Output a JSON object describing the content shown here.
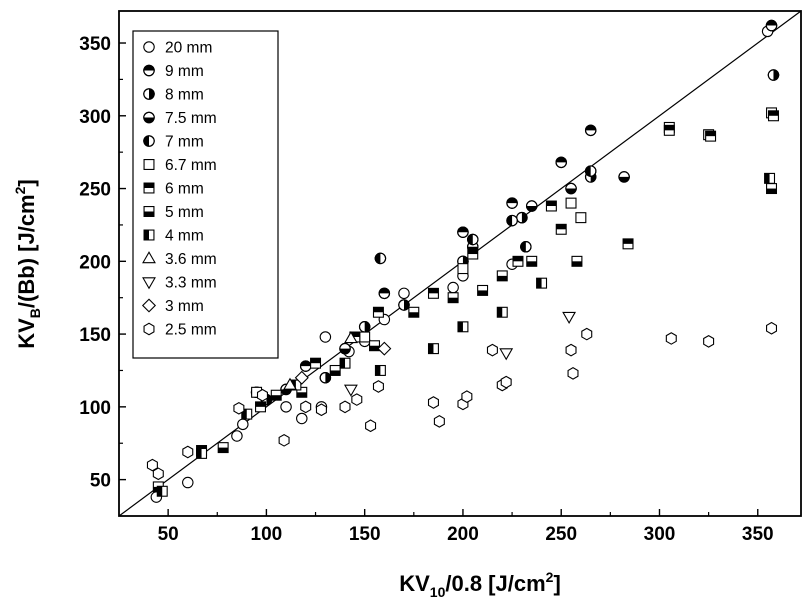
{
  "chart_data": {
    "type": "scatter",
    "title": "",
    "xlabel": "KV10/0.8 [J/cm2]",
    "xlabel_parts": {
      "main": "KV",
      "sub": "10",
      "rest": "/0.8 [J/cm",
      "sup": "2",
      "end": "]"
    },
    "ylabel": "KVB/(Bb) [J/cm2]",
    "ylabel_parts": {
      "main": "KV",
      "sub": "B",
      "rest": "/(Bb) [J/cm",
      "sup": "2",
      "end": "]"
    },
    "xlim": [
      25,
      372
    ],
    "ylim": [
      25,
      372
    ],
    "xticks": [
      50,
      100,
      150,
      200,
      250,
      300,
      350
    ],
    "yticks": [
      50,
      100,
      150,
      200,
      250,
      300,
      350
    ],
    "reference_line": {
      "type": "y=x",
      "from": [
        25,
        25
      ],
      "to": [
        372,
        372
      ]
    },
    "legend_position": "top-left",
    "series": [
      {
        "name": "20 mm",
        "marker": "circle-open",
        "points": [
          [
            44,
            38
          ],
          [
            60,
            48
          ],
          [
            85,
            80
          ],
          [
            88,
            88
          ],
          [
            110,
            100
          ],
          [
            118,
            92
          ],
          [
            128,
            100
          ],
          [
            130,
            148
          ],
          [
            142,
            138
          ],
          [
            150,
            145
          ],
          [
            160,
            160
          ],
          [
            170,
            178
          ],
          [
            195,
            182
          ],
          [
            200,
            190
          ],
          [
            225,
            198
          ],
          [
            355,
            358
          ]
        ]
      },
      {
        "name": "9 mm",
        "marker": "circle-top-filled",
        "points": [
          [
            95,
            110
          ],
          [
            120,
            128
          ],
          [
            160,
            178
          ],
          [
            200,
            220
          ],
          [
            225,
            240
          ],
          [
            250,
            268
          ],
          [
            265,
            290
          ],
          [
            357,
            362
          ]
        ]
      },
      {
        "name": "8 mm",
        "marker": "circle-right-filled",
        "points": [
          [
            100,
            105
          ],
          [
            130,
            120
          ],
          [
            150,
            155
          ],
          [
            170,
            170
          ],
          [
            200,
            200
          ],
          [
            230,
            230
          ],
          [
            265,
            258
          ],
          [
            358,
            328
          ]
        ]
      },
      {
        "name": "7.5 mm",
        "marker": "circle-bottom-filled",
        "points": [
          [
            110,
            112
          ],
          [
            140,
            140
          ],
          [
            205,
            210
          ],
          [
            235,
            238
          ],
          [
            255,
            250
          ],
          [
            282,
            258
          ]
        ]
      },
      {
        "name": "7 mm",
        "marker": "circle-left-filled",
        "points": [
          [
            158,
            202
          ],
          [
            205,
            215
          ],
          [
            225,
            228
          ],
          [
            232,
            210
          ],
          [
            265,
            262
          ]
        ]
      },
      {
        "name": "6.7 mm",
        "marker": "square-open",
        "points": [
          [
            95,
            110
          ],
          [
            150,
            148
          ],
          [
            200,
            195
          ],
          [
            255,
            240
          ],
          [
            260,
            230
          ],
          [
            305,
            292
          ],
          [
            325,
            287
          ],
          [
            357,
            302
          ]
        ]
      },
      {
        "name": "6 mm",
        "marker": "square-top-filled",
        "points": [
          [
            67,
            70
          ],
          [
            97,
            100
          ],
          [
            125,
            130
          ],
          [
            145,
            148
          ],
          [
            157,
            165
          ],
          [
            185,
            178
          ],
          [
            205,
            205
          ],
          [
            228,
            200
          ],
          [
            245,
            238
          ],
          [
            250,
            222
          ],
          [
            284,
            212
          ],
          [
            305,
            290
          ],
          [
            326,
            286
          ],
          [
            358,
            300
          ]
        ]
      },
      {
        "name": "5 mm",
        "marker": "square-bottom-filled",
        "points": [
          [
            45,
            45
          ],
          [
            78,
            72
          ],
          [
            105,
            108
          ],
          [
            118,
            110
          ],
          [
            135,
            125
          ],
          [
            155,
            142
          ],
          [
            175,
            165
          ],
          [
            195,
            175
          ],
          [
            210,
            180
          ],
          [
            220,
            190
          ],
          [
            235,
            200
          ],
          [
            258,
            200
          ],
          [
            357,
            250
          ]
        ]
      },
      {
        "name": "4 mm",
        "marker": "square-left-filled",
        "points": [
          [
            47,
            42
          ],
          [
            67,
            68
          ],
          [
            90,
            95
          ],
          [
            115,
            115
          ],
          [
            140,
            130
          ],
          [
            158,
            125
          ],
          [
            185,
            140
          ],
          [
            200,
            155
          ],
          [
            220,
            165
          ],
          [
            240,
            185
          ],
          [
            356,
            257
          ]
        ]
      },
      {
        "name": "3.6 mm",
        "marker": "triangle-up",
        "points": [
          [
            112,
            115
          ],
          [
            143,
            147
          ]
        ]
      },
      {
        "name": "3.3 mm",
        "marker": "triangle-down",
        "points": [
          [
            143,
            112
          ],
          [
            222,
            137
          ],
          [
            254,
            162
          ]
        ]
      },
      {
        "name": "3 mm",
        "marker": "diamond",
        "points": [
          [
            118,
            120
          ],
          [
            160,
            140
          ]
        ]
      },
      {
        "name": "2.5 mm",
        "marker": "hexagon",
        "points": [
          [
            42,
            60
          ],
          [
            45,
            54
          ],
          [
            60,
            69
          ],
          [
            86,
            99
          ],
          [
            98,
            108
          ],
          [
            109,
            77
          ],
          [
            120,
            100
          ],
          [
            128,
            98
          ],
          [
            140,
            100
          ],
          [
            146,
            105
          ],
          [
            153,
            87
          ],
          [
            157,
            114
          ],
          [
            185,
            103
          ],
          [
            188,
            90
          ],
          [
            200,
            102
          ],
          [
            202,
            107
          ],
          [
            215,
            139
          ],
          [
            220,
            115
          ],
          [
            222,
            117
          ],
          [
            255,
            139
          ],
          [
            256,
            123
          ],
          [
            263,
            150
          ],
          [
            306,
            147
          ],
          [
            325,
            145
          ],
          [
            357,
            154
          ]
        ]
      }
    ]
  }
}
